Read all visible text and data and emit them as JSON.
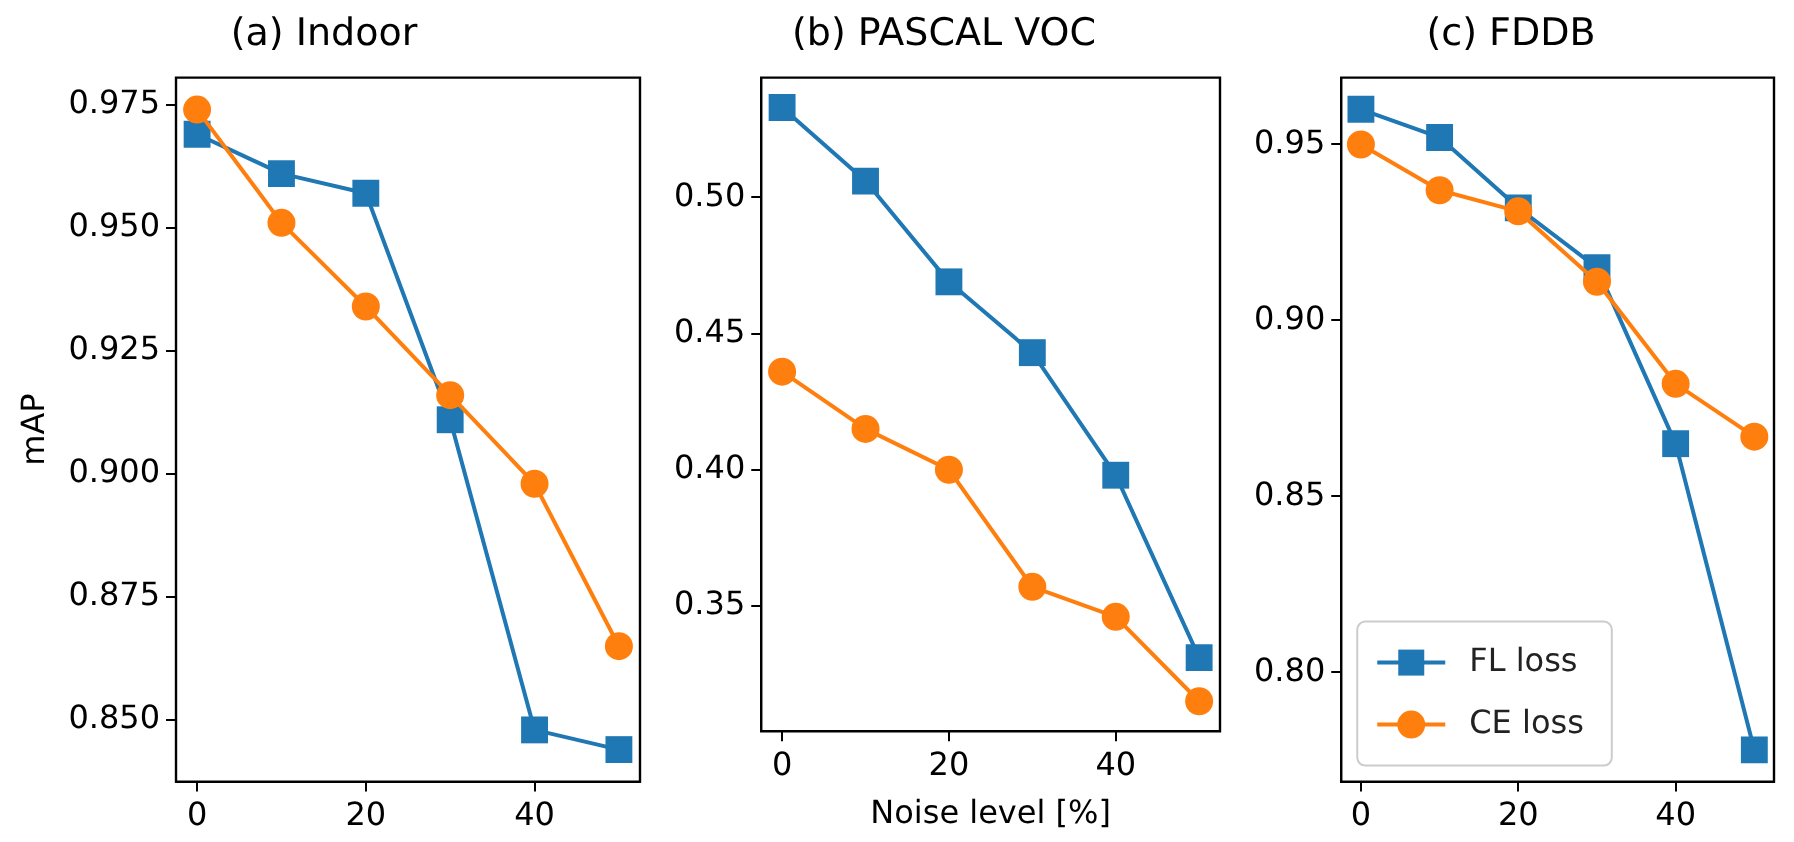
{
  "chart_data": [
    {
      "type": "line",
      "title": "(a) Indoor",
      "ylabel": "mAP",
      "x": [
        0,
        10,
        20,
        30,
        40,
        50
      ],
      "xlim": [
        -2.5,
        52.5
      ],
      "xticks": [
        0,
        20,
        40
      ],
      "ylim": [
        0.8375,
        0.9805
      ],
      "yticks": [
        {
          "value": 0.85,
          "label": "0.850"
        },
        0.875,
        {
          "value": 0.9,
          "label": "0.900"
        },
        0.925,
        {
          "value": 0.95,
          "label": "0.950"
        },
        0.975
      ],
      "grid": false,
      "series": [
        {
          "color": "#1f77b4",
          "marker": "square",
          "values": [
            0.969,
            0.961,
            0.957,
            0.911,
            0.848,
            0.844
          ]
        },
        {
          "color": "#ff7f0e",
          "marker": "circle",
          "values": [
            0.974,
            0.951,
            0.934,
            0.916,
            0.898,
            0.865
          ]
        }
      ]
    },
    {
      "type": "line",
      "title": "(b) PASCAL VOC",
      "xlabel": "Noise level [%]",
      "x": [
        0,
        10,
        20,
        30,
        40,
        50
      ],
      "xlim": [
        -2.5,
        52.5
      ],
      "xticks": [
        0,
        20,
        40
      ],
      "ylim": [
        0.304,
        0.544
      ],
      "yticks": [
        0.35,
        {
          "value": 0.4,
          "label": "0.40"
        },
        0.45,
        {
          "value": 0.5,
          "label": "0.50"
        }
      ],
      "grid": false,
      "series": [
        {
          "color": "#1f77b4",
          "marker": "square",
          "values": [
            0.533,
            0.506,
            0.469,
            0.443,
            0.398,
            0.331
          ]
        },
        {
          "color": "#ff7f0e",
          "marker": "circle",
          "values": [
            0.436,
            0.415,
            0.4,
            0.357,
            0.346,
            0.315
          ]
        }
      ]
    },
    {
      "type": "line",
      "title": "(c) FDDB",
      "x": [
        0,
        10,
        20,
        30,
        40,
        50
      ],
      "xlim": [
        -2.5,
        52.5
      ],
      "xticks": [
        0,
        20,
        40
      ],
      "ylim": [
        0.769,
        0.969
      ],
      "yticks": [
        {
          "value": 0.8,
          "label": "0.80"
        },
        0.85,
        {
          "value": 0.9,
          "label": "0.90"
        },
        0.95
      ],
      "grid": false,
      "legend": "bottom left",
      "series": [
        {
          "name": "FL loss",
          "color": "#1f77b4",
          "marker": "square",
          "values": [
            0.96,
            0.952,
            0.932,
            0.915,
            0.865,
            0.778
          ]
        },
        {
          "name": "CE loss",
          "color": "#ff7f0e",
          "marker": "circle",
          "values": [
            0.95,
            0.937,
            0.931,
            0.911,
            0.882,
            0.867
          ]
        }
      ]
    }
  ]
}
